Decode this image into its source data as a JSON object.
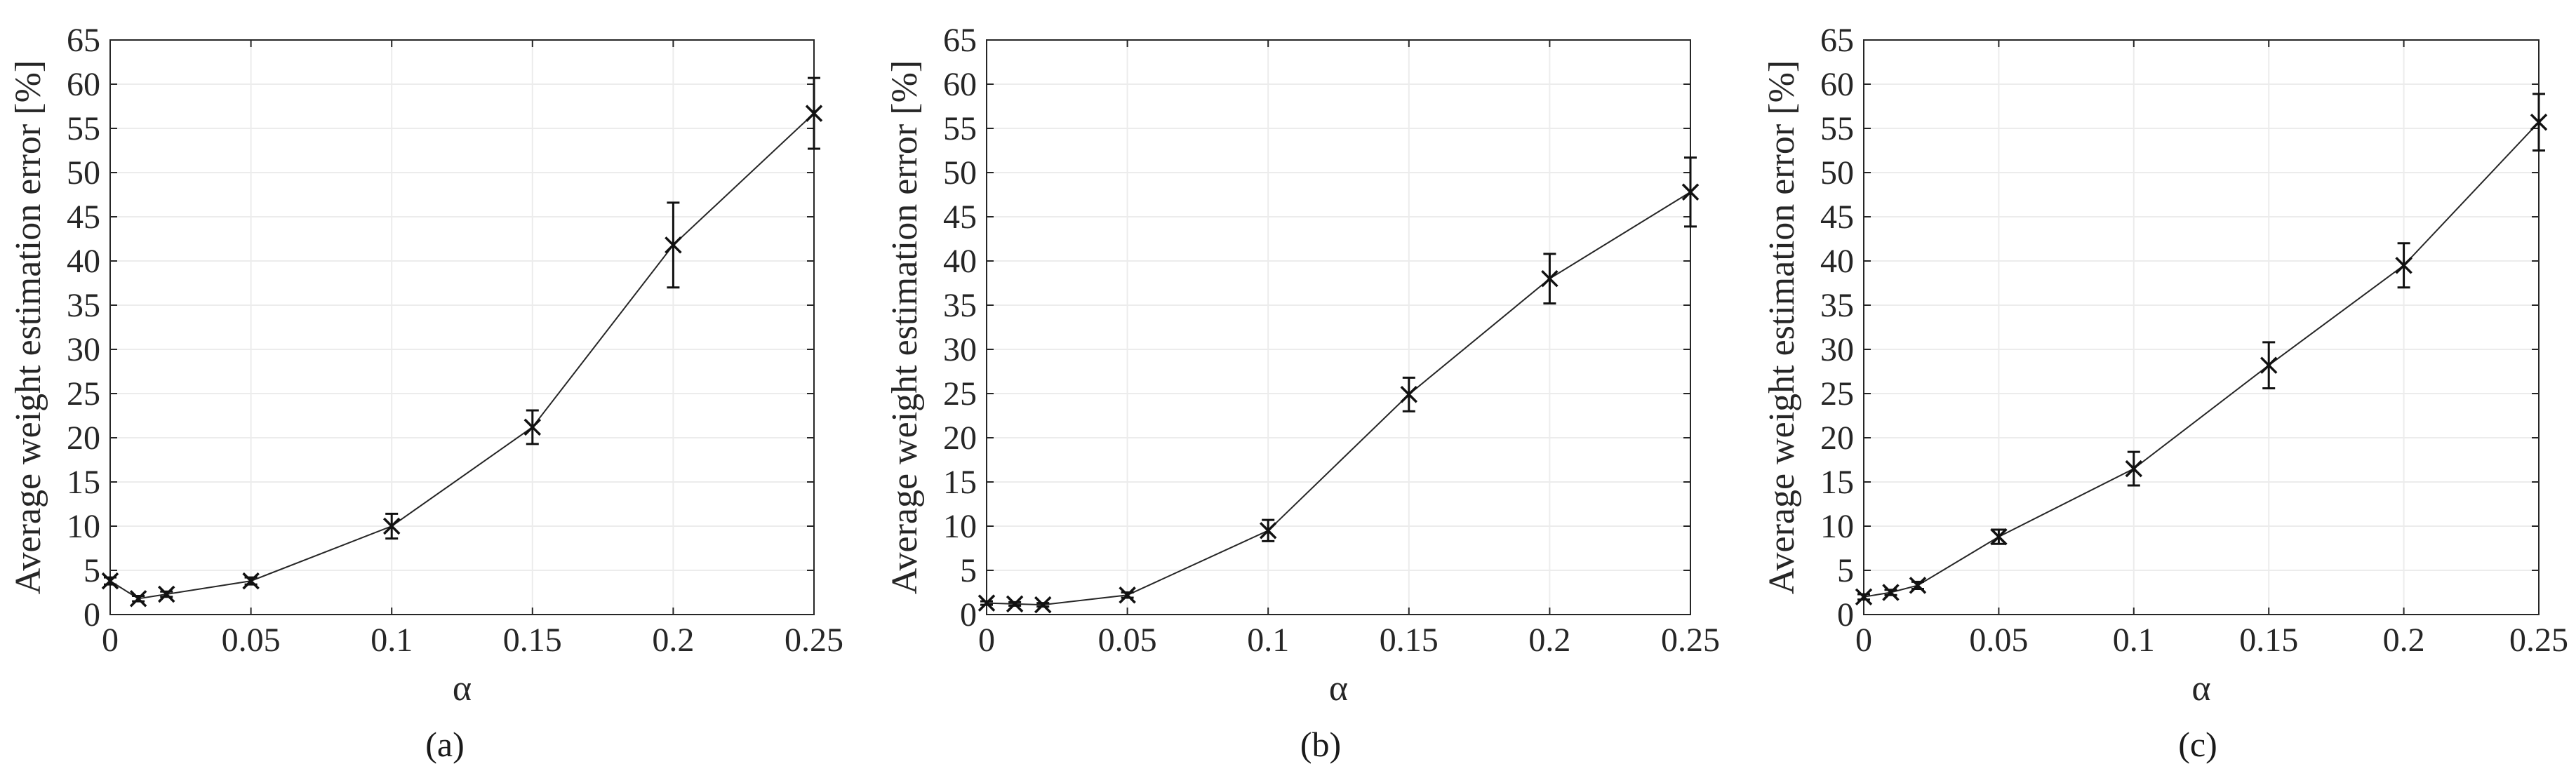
{
  "chart_data": [
    {
      "type": "line",
      "caption": "(a)",
      "xlabel": "α",
      "ylabel": "Average weight estimation error [%]",
      "xlim": [
        0,
        0.25
      ],
      "ylim": [
        0,
        65
      ],
      "grid": true,
      "x_ticks": [
        "0",
        "0.05",
        "0.1",
        "0.15",
        "0.2",
        "0.25"
      ],
      "x_tick_values": [
        0,
        0.05,
        0.1,
        0.15,
        0.2,
        0.25
      ],
      "y_ticks": [
        "0",
        "5",
        "10",
        "15",
        "20",
        "25",
        "30",
        "35",
        "40",
        "45",
        "50",
        "55",
        "60",
        "65"
      ],
      "y_tick_values": [
        0,
        5,
        10,
        15,
        20,
        25,
        30,
        35,
        40,
        45,
        50,
        55,
        60,
        65
      ],
      "series": [
        {
          "x": [
            0,
            0.01,
            0.02,
            0.05,
            0.1,
            0.15,
            0.2,
            0.25
          ],
          "y": [
            3.8,
            1.8,
            2.3,
            3.8,
            10.0,
            21.2,
            41.8,
            56.7
          ],
          "error": [
            0.4,
            0.3,
            0.3,
            0.4,
            1.4,
            1.9,
            4.8,
            4.0
          ]
        }
      ]
    },
    {
      "type": "line",
      "caption": "(b)",
      "xlabel": "α",
      "ylabel": "Average weight estimation error [%]",
      "xlim": [
        0,
        0.25
      ],
      "ylim": [
        0,
        65
      ],
      "grid": true,
      "x_ticks": [
        "0",
        "0.05",
        "0.1",
        "0.15",
        "0.2",
        "0.25"
      ],
      "x_tick_values": [
        0,
        0.05,
        0.1,
        0.15,
        0.2,
        0.25
      ],
      "y_ticks": [
        "0",
        "5",
        "10",
        "15",
        "20",
        "25",
        "30",
        "35",
        "40",
        "45",
        "50",
        "55",
        "60",
        "65"
      ],
      "y_tick_values": [
        0,
        5,
        10,
        15,
        20,
        25,
        30,
        35,
        40,
        45,
        50,
        55,
        60,
        65
      ],
      "series": [
        {
          "x": [
            0,
            0.01,
            0.02,
            0.05,
            0.1,
            0.15,
            0.2,
            0.25
          ],
          "y": [
            1.3,
            1.2,
            1.1,
            2.2,
            9.5,
            24.9,
            38.0,
            47.8
          ],
          "error": [
            0.2,
            0.2,
            0.2,
            0.3,
            1.2,
            1.9,
            2.8,
            3.9
          ]
        }
      ]
    },
    {
      "type": "line",
      "caption": "(c)",
      "xlabel": "α",
      "ylabel": "Average weight estimation error [%]",
      "xlim": [
        0,
        0.25
      ],
      "ylim": [
        0,
        65
      ],
      "grid": true,
      "x_ticks": [
        "0",
        "0.05",
        "0.1",
        "0.15",
        "0.2",
        "0.25"
      ],
      "x_tick_values": [
        0,
        0.05,
        0.1,
        0.15,
        0.2,
        0.25
      ],
      "y_ticks": [
        "0",
        "5",
        "10",
        "15",
        "20",
        "25",
        "30",
        "35",
        "40",
        "45",
        "50",
        "55",
        "60",
        "65"
      ],
      "y_tick_values": [
        0,
        5,
        10,
        15,
        20,
        25,
        30,
        35,
        40,
        45,
        50,
        55,
        60,
        65
      ],
      "series": [
        {
          "x": [
            0,
            0.01,
            0.02,
            0.05,
            0.1,
            0.15,
            0.2,
            0.25
          ],
          "y": [
            2.0,
            2.5,
            3.3,
            8.8,
            16.5,
            28.2,
            39.5,
            55.7
          ],
          "error": [
            0.3,
            0.3,
            0.4,
            0.8,
            1.9,
            2.6,
            2.5,
            3.2
          ]
        }
      ]
    }
  ]
}
